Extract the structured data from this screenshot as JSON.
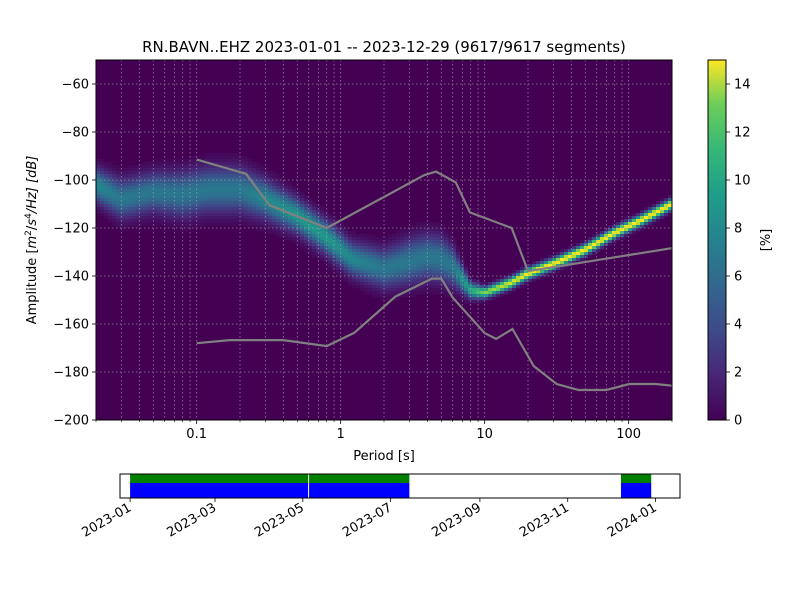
{
  "chart_data": [
    {
      "type": "heatmap",
      "title": "RN.BAVN..EHZ   2023-01-01 -- 2023-12-29  (9617/9617 segments)",
      "xlabel": "Period [s]",
      "ylabel_prefix": "Amplitude [",
      "ylabel_m": "m",
      "ylabel_sup2": "2",
      "ylabel_slash": "/",
      "ylabel_s": "s",
      "ylabel_sup4": "4",
      "ylabel_suffix": "/Hz] [dB]",
      "x_scale": "log",
      "xlim": [
        0.02,
        200
      ],
      "ylim": [
        -200,
        -50
      ],
      "x_ticks": [
        0.1,
        1,
        10,
        100
      ],
      "x_tick_labels": [
        "0.1",
        "1",
        "10",
        "100"
      ],
      "y_ticks": [
        -200,
        -180,
        -160,
        -140,
        -120,
        -100,
        -80,
        -60
      ],
      "y_tick_labels": [
        "−200",
        "−180",
        "−160",
        "−140",
        "−120",
        "−100",
        "−80",
        "−60"
      ],
      "grid": true,
      "colormap": "viridis",
      "background_color": "#440154",
      "colorbar": {
        "label": "[%]",
        "range": [
          0,
          15
        ],
        "ticks": [
          0,
          2,
          4,
          6,
          8,
          10,
          12,
          14
        ],
        "tick_labels": [
          "0",
          "2",
          "4",
          "6",
          "8",
          "10",
          "12",
          "14"
        ]
      },
      "density_ridge": {
        "period": [
          0.02,
          0.03,
          0.05,
          0.08,
          0.12,
          0.2,
          0.3,
          0.5,
          0.8,
          1.2,
          2,
          3,
          4,
          5,
          6,
          8,
          10,
          15,
          20,
          30,
          50,
          80,
          120,
          200
        ],
        "amplitude_db": [
          -102,
          -108,
          -105,
          -106,
          -104,
          -104,
          -108,
          -115,
          -124,
          -133,
          -137,
          -134,
          -132,
          -133,
          -136,
          -146,
          -147,
          -143,
          -139,
          -135,
          -129,
          -122,
          -117,
          -110
        ],
        "spread_db": [
          6,
          7,
          7,
          8,
          8,
          8,
          7,
          6,
          6,
          6,
          7,
          8,
          8,
          8,
          7,
          3,
          2,
          2,
          2,
          2,
          2,
          2,
          2,
          2
        ],
        "peak_percent": [
          7,
          6,
          6,
          6,
          6,
          6,
          7,
          8,
          8,
          7,
          6,
          6,
          6,
          6,
          6,
          9,
          12,
          14,
          15,
          15,
          15,
          15,
          15,
          15
        ]
      },
      "noise_models": [
        {
          "color": "#808080",
          "period": [
            0.1,
            0.17,
            0.4,
            0.8,
            1.24,
            2.4,
            4.3,
            5,
            6,
            10,
            12,
            15.6,
            21.9,
            31.6,
            45,
            70,
            101,
            154,
            200
          ],
          "amplitude_db": [
            -168,
            -166.7,
            -166.7,
            -169.2,
            -163.7,
            -148.6,
            -141.1,
            -141.1,
            -149,
            -163.8,
            -166.2,
            -162.1,
            -177.5,
            -185,
            -187.5,
            -187.5,
            -185,
            -185,
            -185.7
          ]
        },
        {
          "color": "#808080",
          "period": [
            0.1,
            0.22,
            0.32,
            0.8,
            3.8,
            4.6,
            6.3,
            7.9,
            15.4,
            20,
            354.8
          ],
          "amplitude_db": [
            -91.5,
            -97.4,
            -110.5,
            -120,
            -98,
            -96.5,
            -101,
            -113.5,
            -120,
            -138,
            -126
          ]
        }
      ]
    },
    {
      "type": "timeline",
      "tick_labels": [
        "2023-01",
        "2023-03",
        "2023-05",
        "2023-07",
        "2023-09",
        "2023-11",
        "2024-01"
      ],
      "x_range": [
        "2022-12-25",
        "2024-01-18"
      ],
      "colors": {
        "coverage": "#0000ff",
        "upper": "#008000"
      },
      "coverage": [
        {
          "start": "2023-01-01",
          "end": "2023-05-05"
        },
        {
          "start": "2023-05-05",
          "end": "2023-07-14"
        },
        {
          "start": "2023-12-08",
          "end": "2023-12-29"
        }
      ]
    }
  ]
}
